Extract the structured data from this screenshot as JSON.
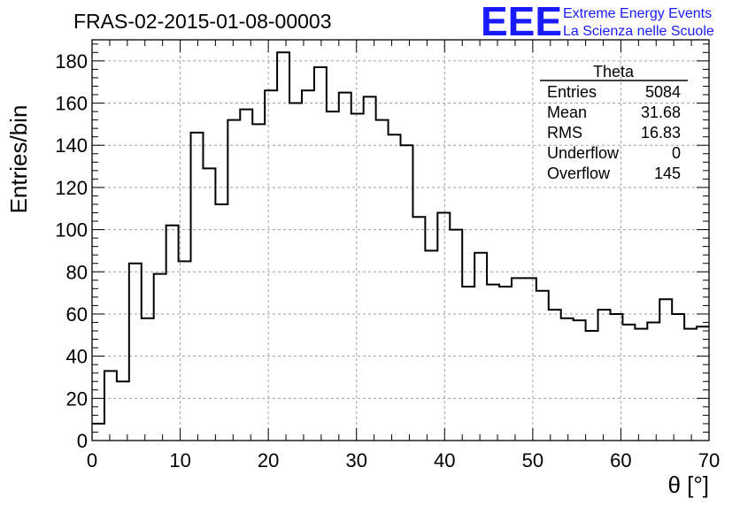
{
  "chart_data": {
    "type": "histogram",
    "title": "FRAS-02-2015-01-08-00003",
    "xlabel": "θ [°]",
    "ylabel": "Entries/bin",
    "xlim": [
      0,
      70
    ],
    "ylim": [
      0,
      190
    ],
    "x_ticks": [
      0,
      10,
      20,
      30,
      40,
      50,
      60,
      70
    ],
    "y_ticks": [
      0,
      20,
      40,
      60,
      80,
      100,
      120,
      140,
      160,
      180
    ],
    "grid": true,
    "bin_width": 1.4,
    "bin_edges_start": 0,
    "values": [
      8,
      33,
      28,
      84,
      58,
      79,
      102,
      85,
      146,
      129,
      112,
      152,
      157,
      150,
      166,
      184,
      160,
      166,
      177,
      156,
      165,
      155,
      163,
      152,
      145,
      140,
      106,
      90,
      108,
      100,
      73,
      89,
      74,
      73,
      77,
      77,
      71,
      62,
      58,
      57,
      52,
      62,
      60,
      55,
      53,
      56,
      67,
      60,
      53,
      54
    ],
    "stats_box": {
      "name": "Theta",
      "rows": [
        {
          "label": "Entries",
          "value": "5084"
        },
        {
          "label": "Mean",
          "value": "31.68"
        },
        {
          "label": "RMS",
          "value": "16.83"
        },
        {
          "label": "Underflow",
          "value": "0"
        },
        {
          "label": "Overflow",
          "value": "145"
        }
      ],
      "position": "top-right"
    }
  },
  "logo": {
    "mark": "EEE",
    "line1": "Extreme Energy Events",
    "line2": "La Scienza nelle Scuole"
  },
  "colors": {
    "histogram": "#000000",
    "grid": "#a0a0a0",
    "logo": "#1a1aff"
  }
}
